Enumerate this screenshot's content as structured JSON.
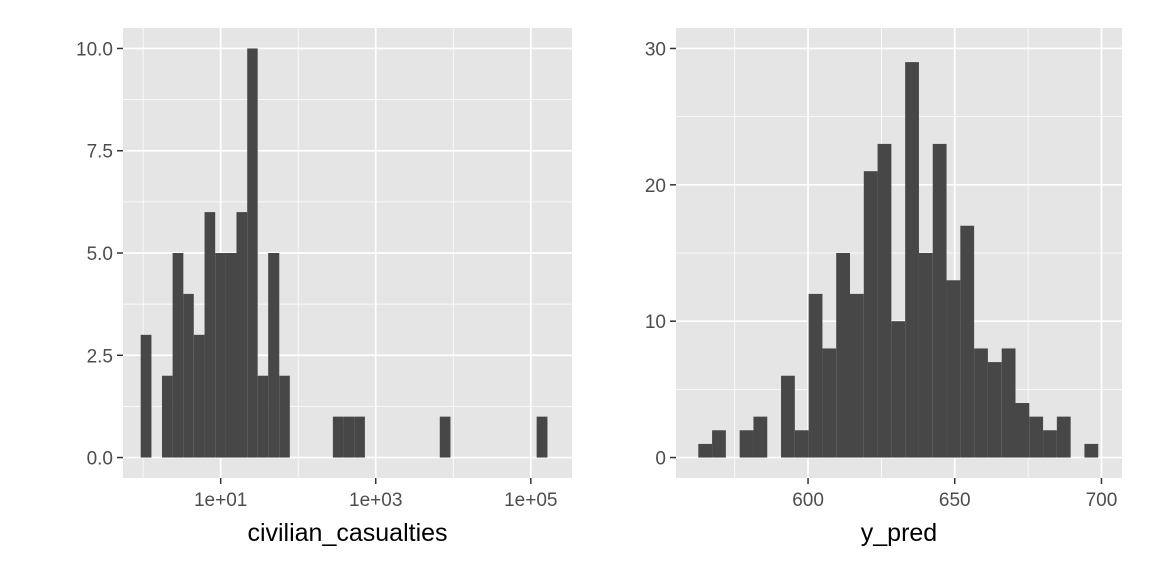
{
  "chart_data": [
    {
      "type": "bar",
      "subtype": "histogram",
      "xlabel": "civilian_casualties",
      "ylabel": "",
      "x_scale": "log10",
      "x_ticks": [
        10,
        1000,
        100000
      ],
      "x_tick_labels": [
        "1e+01",
        "1e+03",
        "1e+05"
      ],
      "xlim": [
        0.55,
        340000
      ],
      "y_ticks": [
        0,
        2.5,
        5,
        7.5,
        10
      ],
      "y_tick_labels": [
        "0.0",
        "2.5",
        "5.0",
        "7.5",
        "10.0"
      ],
      "ylim": [
        -0.5,
        10.5
      ],
      "bins": [
        {
          "x0": 0.93,
          "x1": 1.28,
          "count": 3
        },
        {
          "x0": 1.28,
          "x1": 1.75,
          "count": 0
        },
        {
          "x0": 1.75,
          "x1": 2.4,
          "count": 2
        },
        {
          "x0": 2.4,
          "x1": 3.3,
          "count": 5
        },
        {
          "x0": 3.3,
          "x1": 4.5,
          "count": 4
        },
        {
          "x0": 4.5,
          "x1": 6.2,
          "count": 3
        },
        {
          "x0": 6.2,
          "x1": 8.5,
          "count": 6
        },
        {
          "x0": 8.5,
          "x1": 11.7,
          "count": 5
        },
        {
          "x0": 11.7,
          "x1": 16,
          "count": 5
        },
        {
          "x0": 16,
          "x1": 22,
          "count": 6
        },
        {
          "x0": 22,
          "x1": 30,
          "count": 10
        },
        {
          "x0": 30,
          "x1": 41,
          "count": 2
        },
        {
          "x0": 41,
          "x1": 57,
          "count": 5
        },
        {
          "x0": 57,
          "x1": 78,
          "count": 2
        },
        {
          "x0": 280,
          "x1": 385,
          "count": 1
        },
        {
          "x0": 385,
          "x1": 530,
          "count": 1
        },
        {
          "x0": 530,
          "x1": 725,
          "count": 1
        },
        {
          "x0": 6700,
          "x1": 9200,
          "count": 1
        },
        {
          "x0": 119000,
          "x1": 164000,
          "count": 1
        }
      ],
      "grid": true,
      "bar_color": "#474747",
      "panel_color": "#e5e5e5",
      "grid_color": "#ffffff"
    },
    {
      "type": "bar",
      "subtype": "histogram",
      "xlabel": "y_pred",
      "ylabel": "",
      "x_ticks": [
        600,
        650,
        700
      ],
      "x_tick_labels": [
        "600",
        "650",
        "700"
      ],
      "xlim": [
        555,
        707
      ],
      "y_ticks": [
        0,
        10,
        20,
        30
      ],
      "y_tick_labels": [
        "0",
        "10",
        "20",
        "30"
      ],
      "ylim": [
        -1.5,
        31.5
      ],
      "bin_start": 562.6,
      "bin_width": 4.7,
      "counts": [
        1,
        2,
        0,
        2,
        3,
        0,
        6,
        2,
        12,
        8,
        15,
        12,
        21,
        23,
        10,
        29,
        15,
        23,
        13,
        17,
        8,
        7,
        8,
        4,
        3,
        2,
        3,
        0,
        1
      ],
      "grid": true,
      "bar_color": "#474747",
      "panel_color": "#e5e5e5",
      "grid_color": "#ffffff"
    }
  ]
}
